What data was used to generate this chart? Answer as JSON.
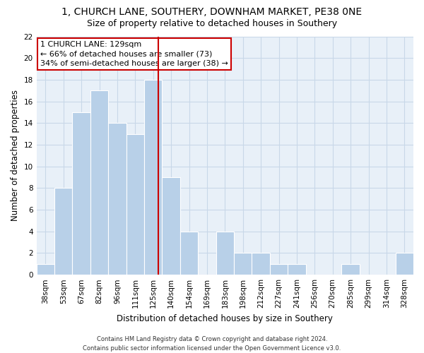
{
  "title": "1, CHURCH LANE, SOUTHERY, DOWNHAM MARKET, PE38 0NE",
  "subtitle": "Size of property relative to detached houses in Southery",
  "xlabel": "Distribution of detached houses by size in Southery",
  "ylabel": "Number of detached properties",
  "bin_labels": [
    "38sqm",
    "53sqm",
    "67sqm",
    "82sqm",
    "96sqm",
    "111sqm",
    "125sqm",
    "140sqm",
    "154sqm",
    "169sqm",
    "183sqm",
    "198sqm",
    "212sqm",
    "227sqm",
    "241sqm",
    "256sqm",
    "270sqm",
    "285sqm",
    "299sqm",
    "314sqm",
    "328sqm"
  ],
  "bar_heights": [
    1,
    8,
    15,
    17,
    14,
    13,
    18,
    9,
    4,
    0,
    4,
    2,
    2,
    1,
    1,
    0,
    0,
    1,
    0,
    0,
    2
  ],
  "bar_color": "#b8d0e8",
  "vline_x": 6.3,
  "vline_color": "#cc0000",
  "ylim": [
    0,
    22
  ],
  "yticks": [
    0,
    2,
    4,
    6,
    8,
    10,
    12,
    14,
    16,
    18,
    20,
    22
  ],
  "annotation_title": "1 CHURCH LANE: 129sqm",
  "annotation_line1": "← 66% of detached houses are smaller (73)",
  "annotation_line2": "34% of semi-detached houses are larger (38) →",
  "annotation_box_color": "#ffffff",
  "annotation_box_edge": "#cc0000",
  "footer_line1": "Contains HM Land Registry data © Crown copyright and database right 2024.",
  "footer_line2": "Contains public sector information licensed under the Open Government Licence v3.0.",
  "background_color": "#ffffff",
  "grid_color": "#c8d8e8",
  "title_fontsize": 10,
  "subtitle_fontsize": 9,
  "axis_label_fontsize": 8.5,
  "tick_fontsize": 7.5,
  "annotation_fontsize": 8,
  "footer_fontsize": 6
}
